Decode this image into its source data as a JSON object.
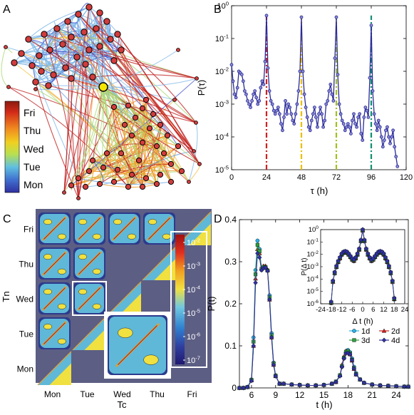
{
  "panel_labels": {
    "A": "A",
    "B": "B",
    "C": "C",
    "D": "D"
  },
  "colorbar_days": [
    "Fri",
    "Thu",
    "Wed",
    "Tue",
    "Mon"
  ],
  "chart_data": [
    {
      "panel": "A",
      "type": "network",
      "legend_labels": [
        "Fri",
        "Thu",
        "Wed",
        "Tue",
        "Mon"
      ],
      "colors": {
        "Mon": "#4a5bd0",
        "Tue": "#7fb8e8",
        "Wed": "#a8d870",
        "Thu": "#f0a030",
        "Fri": "#c02020",
        "hub": "#f5e600",
        "node": "#d23c3c"
      }
    },
    {
      "panel": "B",
      "type": "line",
      "title": "",
      "xlabel": "τ (h)",
      "ylabel": "P(τ)",
      "xlim": [
        0,
        120
      ],
      "ylim_log10": [
        -5,
        0
      ],
      "xticks": [
        "0",
        "24",
        "48",
        "72",
        "96",
        "120"
      ],
      "yticks": [
        "10-5",
        "10-4",
        "10-3",
        "10-2",
        "10-1",
        "100"
      ],
      "line_color": "#2a2a9a",
      "peaks": [
        {
          "x": 24,
          "color": "#d02020"
        },
        {
          "x": 48,
          "color": "#e8c000"
        },
        {
          "x": 72,
          "color": "#a0c020"
        },
        {
          "x": 96,
          "color": "#109070"
        }
      ],
      "series": [
        {
          "x": [
            0,
            1,
            2,
            3,
            4,
            5,
            6,
            7,
            8,
            9,
            10,
            11,
            12,
            13,
            14,
            15,
            16,
            17,
            18,
            19,
            20,
            21,
            22,
            23,
            24,
            25,
            26,
            27,
            28,
            29,
            30,
            31,
            32,
            33,
            34,
            35,
            36,
            37,
            38,
            39,
            40,
            41,
            42,
            43,
            44,
            45,
            46,
            47,
            48,
            49,
            50,
            51,
            52,
            53,
            54,
            55,
            56,
            57,
            58,
            59,
            60,
            61,
            62,
            63,
            64,
            65,
            66,
            67,
            68,
            69,
            70,
            71,
            72,
            73,
            74,
            75,
            76,
            77,
            78,
            79,
            80,
            81,
            82,
            83,
            84,
            85,
            86,
            87,
            88,
            89,
            90,
            91,
            92,
            93,
            94,
            95,
            96,
            97,
            98,
            99,
            100,
            101,
            102,
            103,
            104,
            105,
            106,
            107,
            108,
            109,
            110,
            111,
            112,
            113,
            114
          ],
          "log10_y": [
            -1.8,
            -2.3,
            -2.7,
            -2.8,
            -2.5,
            -2.0,
            -2.05,
            -2.1,
            -2.3,
            -2.6,
            -2.7,
            -2.9,
            -3.0,
            -3.1,
            -2.9,
            -2.7,
            -2.6,
            -2.8,
            -3.0,
            -2.9,
            -2.5,
            -2.3,
            -2.4,
            -1.7,
            -0.3,
            -1.9,
            -2.6,
            -2.9,
            -3.0,
            -3.2,
            -3.3,
            -3.2,
            -3.1,
            -3.3,
            -3.6,
            -3.8,
            -3.4,
            -2.9,
            -3.3,
            -3.0,
            -3.1,
            -3.3,
            -3.5,
            -3.6,
            -3.3,
            -3.0,
            -2.6,
            -2.0,
            -0.35,
            -2.0,
            -2.7,
            -3.1,
            -3.4,
            -3.7,
            -3.8,
            -3.5,
            -3.3,
            -3.1,
            -3.4,
            -3.7,
            -3.3,
            -3.1,
            -3.3,
            -3.7,
            -3.5,
            -3.0,
            -2.9,
            -2.6,
            -2.4,
            -2.7,
            -2.9,
            -1.6,
            -0.35,
            -2.1,
            -3.0,
            -3.3,
            -3.5,
            -3.6,
            -3.8,
            -3.7,
            -3.6,
            -3.7,
            -3.9,
            -3.5,
            -3.3,
            -3.6,
            -3.7,
            -3.4,
            -3.3,
            -3.9,
            -4.1,
            -3.4,
            -3.1,
            -3.2,
            -3.4,
            -2.2,
            -0.6,
            -2.6,
            -3.3,
            -3.6,
            -3.8,
            -3.5,
            -3.7,
            -4.0,
            -4.3,
            -4.1,
            -3.8,
            -3.7,
            -4.0,
            -4.2,
            -4.0,
            -3.8,
            -4.3,
            -4.6,
            -4.9
          ]
        }
      ]
    },
    {
      "panel": "C",
      "type": "heatmap",
      "xlabel": "Tc",
      "ylabel": "Tn",
      "xticks": [
        "Mon",
        "Tue",
        "Wed",
        "Thu",
        "Fri"
      ],
      "yticks": [
        "Fri",
        "Thu",
        "Wed",
        "Tue",
        "Mon"
      ],
      "colorbar_ticks": [
        "10-2",
        "10-3",
        "10-4",
        "10-5",
        "10-6",
        "10-7"
      ]
    },
    {
      "panel": "D",
      "type": "line",
      "xlabel": "t (h)",
      "ylabel": "P(t)",
      "xlim": [
        4.5,
        25.5
      ],
      "ylim": [
        0,
        0.4
      ],
      "xticks": [
        "6",
        "9",
        "12",
        "15",
        "18",
        "21",
        "24"
      ],
      "yticks": [
        "0",
        "0.1",
        "0.2",
        "0.3",
        "0.4"
      ],
      "x": [
        4.5,
        5,
        5.5,
        6,
        6.25,
        6.5,
        6.75,
        7,
        7.25,
        7.5,
        7.75,
        8,
        8.25,
        8.5,
        8.75,
        9,
        9.5,
        10,
        11,
        12,
        13,
        14,
        15,
        16,
        16.5,
        17,
        17.25,
        17.5,
        17.75,
        18,
        18.25,
        18.5,
        18.75,
        19,
        19.5,
        20,
        21,
        22,
        23,
        24,
        25,
        25.5
      ],
      "series": [
        {
          "name": "1d",
          "color": "#2ab0e8",
          "marker": "circle",
          "values": [
            0,
            0,
            0.002,
            0.02,
            0.12,
            0.28,
            0.35,
            0.33,
            0.28,
            0.285,
            0.285,
            0.28,
            0.22,
            0.13,
            0.06,
            0.03,
            0.01,
            0.01,
            0.008,
            0.007,
            0.006,
            0.006,
            0.007,
            0.01,
            0.015,
            0.03,
            0.05,
            0.07,
            0.085,
            0.09,
            0.085,
            0.07,
            0.05,
            0.035,
            0.02,
            0.012,
            0.008,
            0.006,
            0.005,
            0.004,
            0.003,
            0.003
          ]
        },
        {
          "name": "2d",
          "color": "#d02020",
          "marker": "triangle",
          "values": [
            0,
            0,
            0.002,
            0.018,
            0.1,
            0.26,
            0.33,
            0.32,
            0.285,
            0.29,
            0.29,
            0.28,
            0.21,
            0.12,
            0.055,
            0.028,
            0.01,
            0.01,
            0.008,
            0.007,
            0.006,
            0.006,
            0.007,
            0.01,
            0.014,
            0.03,
            0.055,
            0.075,
            0.088,
            0.085,
            0.08,
            0.065,
            0.045,
            0.032,
            0.02,
            0.012,
            0.008,
            0.006,
            0.005,
            0.004,
            0.003,
            0.003
          ]
        },
        {
          "name": "3d",
          "color": "#30a040",
          "marker": "square",
          "values": [
            0,
            0,
            0.002,
            0.019,
            0.11,
            0.27,
            0.34,
            0.325,
            0.283,
            0.288,
            0.287,
            0.279,
            0.215,
            0.125,
            0.058,
            0.029,
            0.01,
            0.01,
            0.008,
            0.007,
            0.006,
            0.006,
            0.007,
            0.01,
            0.015,
            0.03,
            0.052,
            0.072,
            0.086,
            0.087,
            0.082,
            0.067,
            0.047,
            0.033,
            0.02,
            0.012,
            0.008,
            0.006,
            0.005,
            0.004,
            0.003,
            0.003
          ]
        },
        {
          "name": "4d",
          "color": "#3030a0",
          "marker": "diamond",
          "values": [
            0,
            0,
            0.002,
            0.017,
            0.1,
            0.25,
            0.32,
            0.31,
            0.28,
            0.285,
            0.286,
            0.278,
            0.21,
            0.12,
            0.055,
            0.028,
            0.01,
            0.01,
            0.008,
            0.007,
            0.006,
            0.006,
            0.007,
            0.01,
            0.014,
            0.028,
            0.05,
            0.07,
            0.082,
            0.083,
            0.08,
            0.066,
            0.046,
            0.032,
            0.02,
            0.012,
            0.008,
            0.006,
            0.005,
            0.004,
            0.003,
            0.003
          ]
        }
      ],
      "inset": {
        "xlabel": "Δ t (h)",
        "ylabel": "P(Δ t)",
        "xlim": [
          -24,
          24
        ],
        "ylim_log10": [
          -6,
          0
        ],
        "xticks": [
          "-24",
          "-18",
          "-12",
          "-6",
          "0",
          "6",
          "12",
          "18",
          "24"
        ],
        "yticks": [
          "10-6",
          "10-5",
          "10-4",
          "10-3",
          "10-2",
          "10-1",
          "100"
        ],
        "x": [
          -18,
          -17,
          -16,
          -15,
          -14,
          -13,
          -12,
          -11,
          -10,
          -9,
          -8,
          -7,
          -6,
          -5,
          -4,
          -3,
          -2,
          -1,
          0,
          1,
          2,
          3,
          4,
          5,
          6,
          7,
          8,
          9,
          10,
          11,
          12,
          13,
          14,
          15,
          16,
          17,
          18
        ],
        "log10_y": [
          -5.9,
          -4.2,
          -3.5,
          -3.0,
          -2.6,
          -2.3,
          -2.0,
          -1.85,
          -1.8,
          -1.85,
          -2.0,
          -2.2,
          -2.4,
          -2.5,
          -2.3,
          -2.0,
          -1.6,
          -0.9,
          -0.05,
          -0.9,
          -1.6,
          -2.0,
          -2.3,
          -2.5,
          -2.4,
          -2.2,
          -2.0,
          -1.85,
          -1.8,
          -1.85,
          -2.0,
          -2.3,
          -2.6,
          -3.0,
          -3.5,
          -4.2,
          -5.6
        ]
      }
    }
  ]
}
